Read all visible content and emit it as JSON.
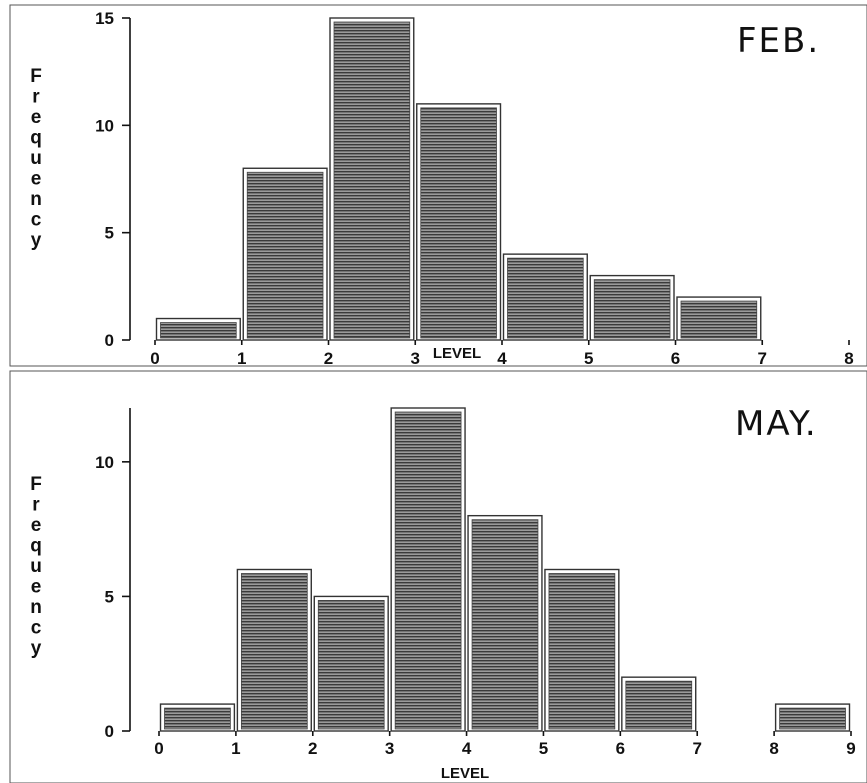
{
  "chart_data": [
    {
      "type": "bar",
      "title": "FEB.",
      "xlabel": "LEVEL",
      "ylabel": "Frequency",
      "x_ticks": [
        0,
        1,
        2,
        3,
        4,
        5,
        6,
        7,
        8
      ],
      "y_ticks": [
        0,
        5,
        10,
        15
      ],
      "xlim": [
        0,
        8
      ],
      "ylim": [
        0,
        15
      ],
      "bins": [
        [
          0,
          1
        ],
        [
          1,
          2
        ],
        [
          2,
          3
        ],
        [
          3,
          4
        ],
        [
          4,
          5
        ],
        [
          5,
          6
        ],
        [
          6,
          7
        ]
      ],
      "values": [
        1,
        8,
        15,
        11,
        4,
        3,
        2
      ],
      "grid": false,
      "colors": {
        "bar_fill": "#666666",
        "axis": "#111111"
      }
    },
    {
      "type": "bar",
      "title": "MAY.",
      "xlabel": "LEVEL",
      "ylabel": "Frequency",
      "x_ticks": [
        0,
        1,
        2,
        3,
        4,
        5,
        6,
        7,
        8,
        9
      ],
      "y_ticks": [
        0,
        5,
        10
      ],
      "xlim": [
        0,
        9.5
      ],
      "ylim": [
        0,
        12
      ],
      "bins": [
        [
          0,
          1
        ],
        [
          1,
          2
        ],
        [
          2,
          3
        ],
        [
          3,
          4
        ],
        [
          4,
          5
        ],
        [
          5,
          6
        ],
        [
          6,
          7
        ],
        [
          8,
          9
        ]
      ],
      "values": [
        1,
        6,
        5,
        12,
        8,
        6,
        2,
        1
      ],
      "grid": false,
      "colors": {
        "bar_fill": "#666666",
        "axis": "#111111"
      }
    }
  ]
}
